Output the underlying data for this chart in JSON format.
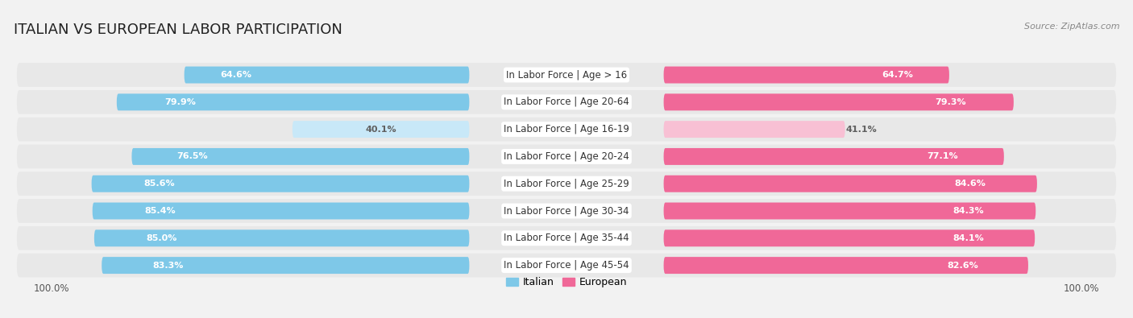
{
  "title": "ITALIAN VS EUROPEAN LABOR PARTICIPATION",
  "source": "Source: ZipAtlas.com",
  "categories": [
    "In Labor Force | Age > 16",
    "In Labor Force | Age 20-64",
    "In Labor Force | Age 16-19",
    "In Labor Force | Age 20-24",
    "In Labor Force | Age 25-29",
    "In Labor Force | Age 30-34",
    "In Labor Force | Age 35-44",
    "In Labor Force | Age 45-54"
  ],
  "italian_values": [
    64.6,
    79.9,
    40.1,
    76.5,
    85.6,
    85.4,
    85.0,
    83.3
  ],
  "european_values": [
    64.7,
    79.3,
    41.1,
    77.1,
    84.6,
    84.3,
    84.1,
    82.6
  ],
  "italian_color": "#7EC8E8",
  "italian_light_color": "#C8E8F8",
  "european_color": "#F06898",
  "european_light_color": "#F8C0D4",
  "row_bg_color": "#E8E8E8",
  "fig_bg_color": "#F2F2F2",
  "max_val": 100.0,
  "title_fontsize": 13,
  "label_fontsize": 8.5,
  "value_fontsize": 8.0,
  "source_fontsize": 8.0
}
